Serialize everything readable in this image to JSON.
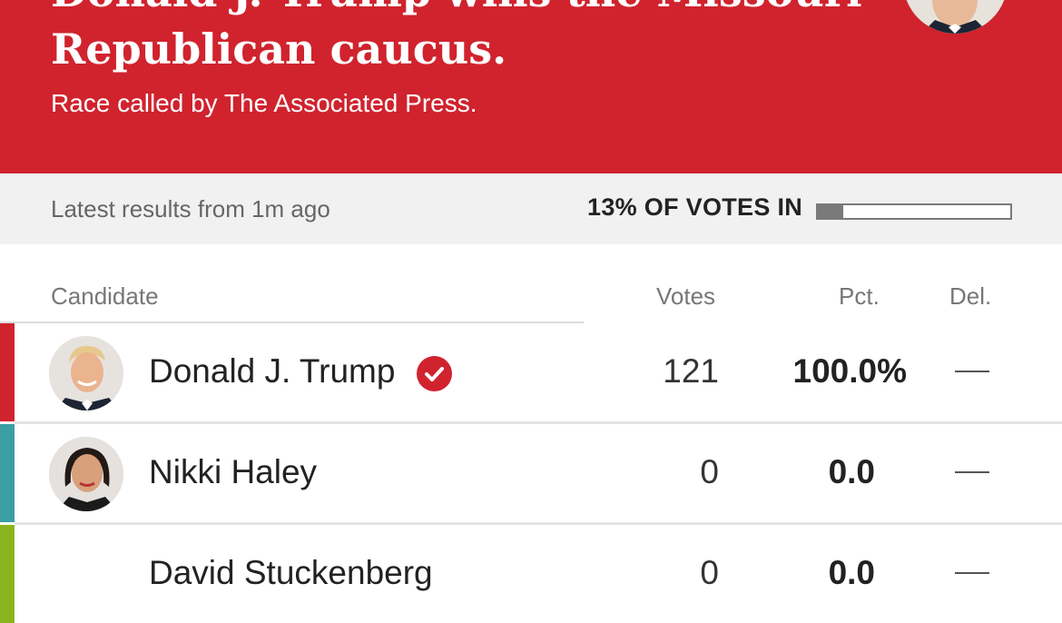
{
  "header": {
    "headline_line1": "Donald J. Trump wins the Missouri",
    "headline_line2": "Republican caucus.",
    "subhead": "Race called by The Associated Press."
  },
  "status": {
    "latest": "Latest results from 1m ago",
    "votes_in": "13% OF VOTES IN",
    "votes_in_fraction": 0.13
  },
  "table": {
    "columns": {
      "candidate": "Candidate",
      "votes": "Votes",
      "pct": "Pct.",
      "del": "Del."
    },
    "rows": [
      {
        "name": "Donald J. Trump",
        "votes": "121",
        "pct": "100.0%",
        "del": "—",
        "winner": true,
        "color": "#d0232e",
        "avatar": "trump"
      },
      {
        "name": "Nikki Haley",
        "votes": "0",
        "pct": "0.0",
        "del": "—",
        "winner": false,
        "color": "#3a9ea3",
        "avatar": "haley"
      },
      {
        "name": "David Stuckenberg",
        "votes": "0",
        "pct": "0.0",
        "del": "—",
        "winner": false,
        "color": "#8ab31f",
        "avatar": ""
      }
    ]
  },
  "colors": {
    "header_bg": "#d0232e",
    "status_bg": "#f1f1f1"
  }
}
